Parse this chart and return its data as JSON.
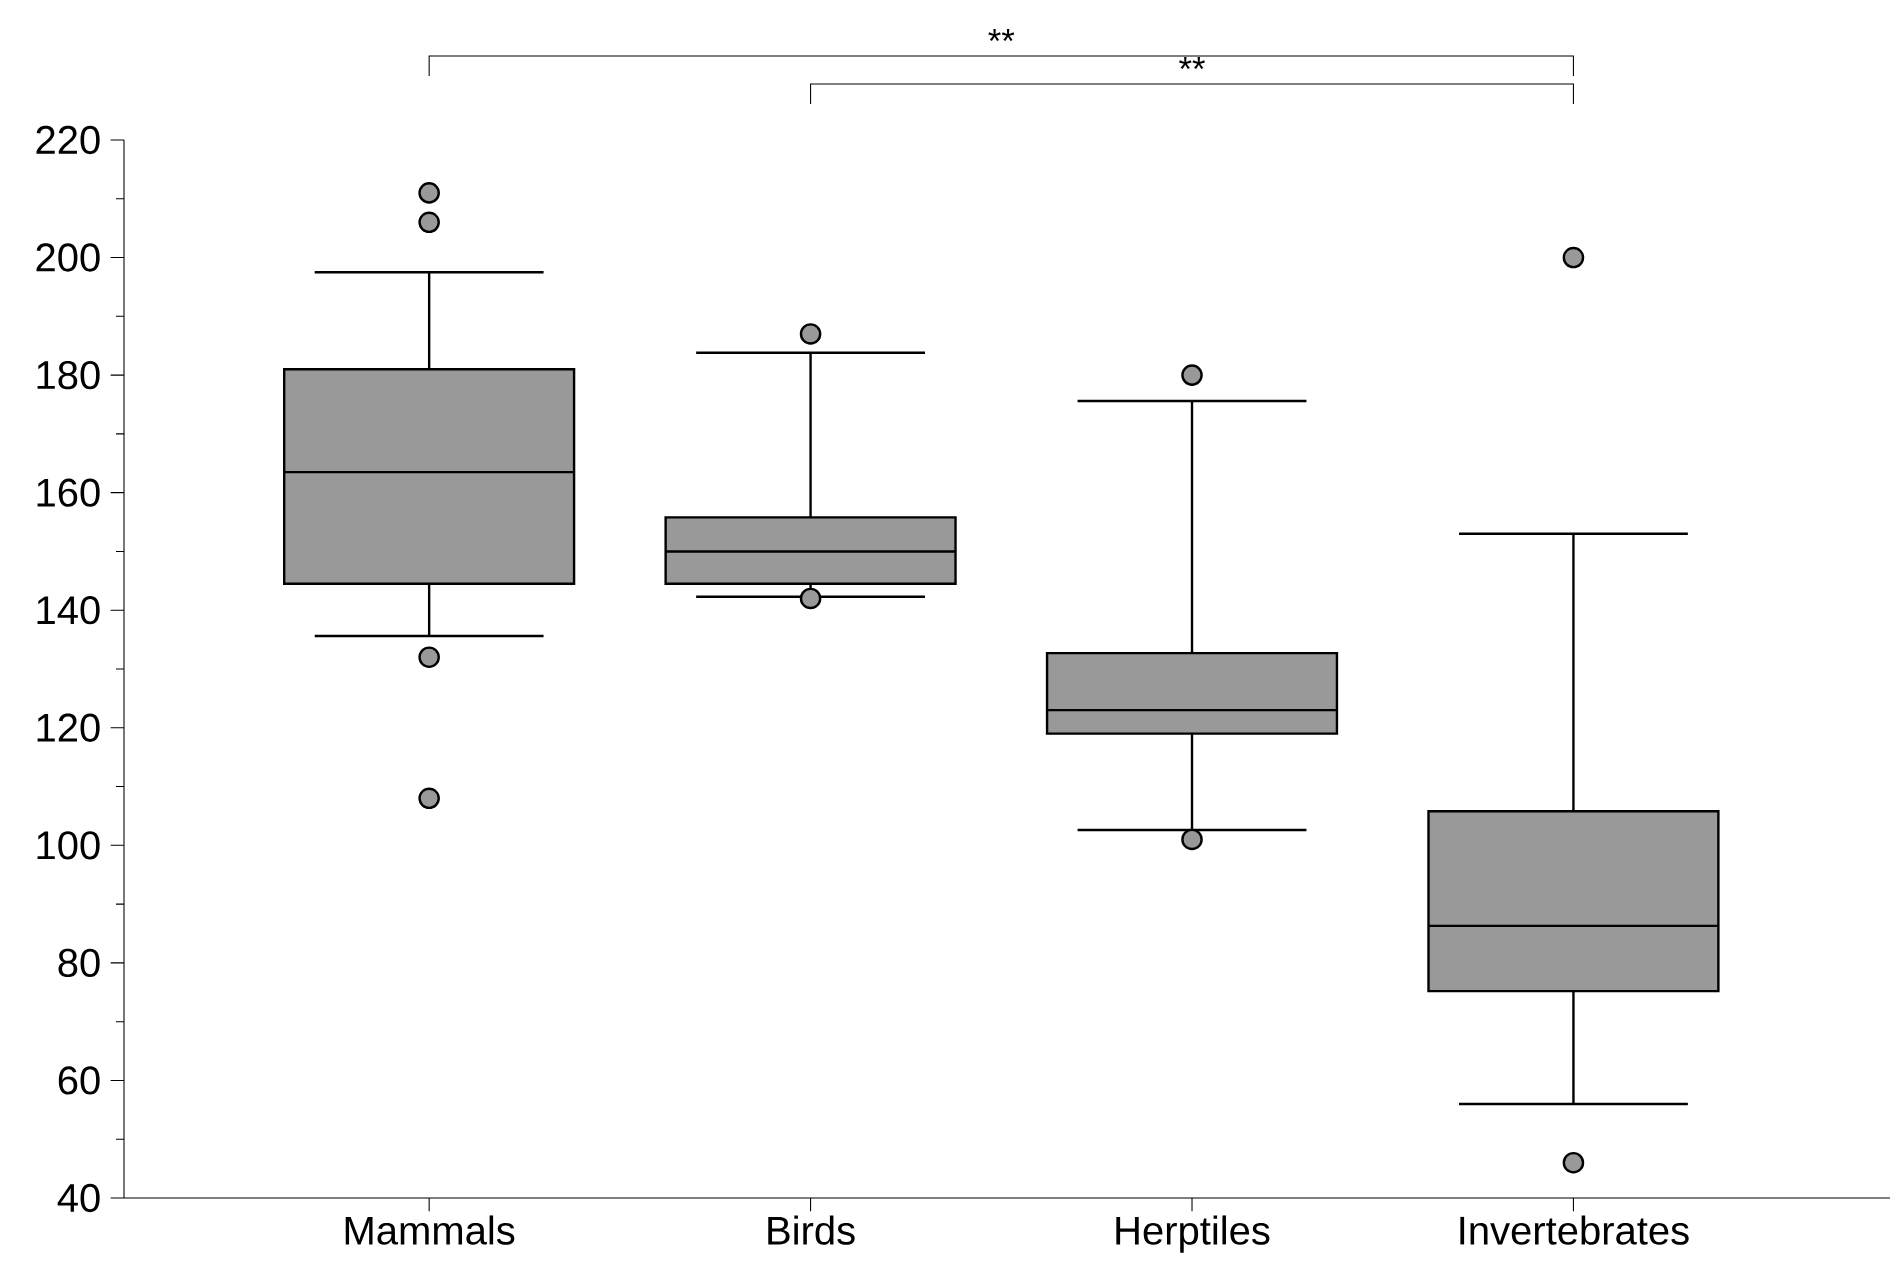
{
  "chart_data": {
    "type": "box",
    "categories": [
      "Mammals",
      "Birds",
      "Herptiles",
      "Invertebrates"
    ],
    "color": "#999999",
    "ylim": [
      40,
      220
    ],
    "yticks": [
      40,
      60,
      80,
      100,
      120,
      140,
      160,
      180,
      200,
      220
    ],
    "boxes": [
      {
        "low": 135.6,
        "q1": 144.5,
        "median": 163.5,
        "q3": 181,
        "high": 197.5,
        "outliers": [
          211,
          206,
          132,
          108
        ]
      },
      {
        "low": 142.3,
        "q1": 144.5,
        "median": 150,
        "q3": 155.8,
        "high": 183.8,
        "outliers": [
          187,
          142
        ]
      },
      {
        "low": 102.6,
        "q1": 119,
        "median": 123,
        "q3": 132.7,
        "high": 175.6,
        "outliers": [
          180,
          101
        ]
      },
      {
        "low": 56,
        "q1": 75.2,
        "median": 86.3,
        "q3": 105.8,
        "high": 153,
        "outliers": [
          200,
          46
        ]
      }
    ],
    "annotations": [
      "**",
      "**"
    ]
  }
}
